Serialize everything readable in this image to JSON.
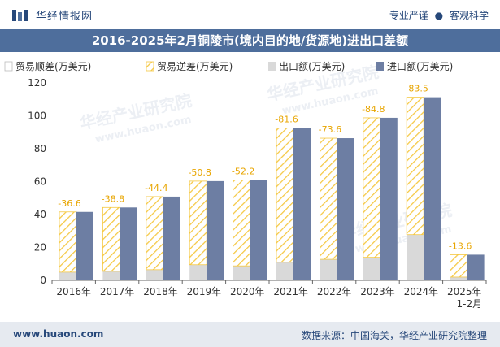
{
  "header": {
    "brand": "华经情报网",
    "tagline_left": "专业严谨",
    "tagline_right": "客观科学"
  },
  "colors": {
    "title_bg": "#4e6e9c",
    "import_bar": "#6d7ea3",
    "export_bar": "#d9d9d9",
    "deficit_stripe": "#f5c842",
    "label": "#e8a500"
  },
  "watermark": {
    "cn": "华经产业研究院",
    "url": "www.huaon.com"
  },
  "chart_data": {
    "type": "bar",
    "title": "2016-2025年2月铜陵市(境内目的地/货源地)进出口差额",
    "ylim": [
      0,
      120
    ],
    "yticks": [
      0,
      20,
      40,
      60,
      80,
      100,
      120
    ],
    "legend": [
      "贸易顺差(万美元)",
      "贸易逆差(万美元)",
      "出口额(万美元)",
      "进口额(万美元)"
    ],
    "categories": [
      "2016年",
      "2017年",
      "2018年",
      "2019年",
      "2020年",
      "2021年",
      "2022年",
      "2023年",
      "2024年",
      "2025年\n1-2月"
    ],
    "series": [
      {
        "name": "出口额(万美元)",
        "values": [
          5.0,
          5.5,
          6.5,
          9.5,
          8.8,
          11.0,
          12.8,
          14.0,
          27.8,
          2.0
        ]
      },
      {
        "name": "进口额(万美元)",
        "values": [
          41.6,
          44.3,
          50.9,
          60.3,
          61.0,
          92.6,
          86.4,
          98.8,
          111.3,
          15.6
        ]
      },
      {
        "name": "贸易逆差(万美元)",
        "values": [
          -36.6,
          -38.8,
          -44.4,
          -50.8,
          -52.2,
          -81.6,
          -73.6,
          -84.8,
          -83.5,
          -13.6
        ]
      }
    ],
    "data_labels": [
      "-36.6",
      "-38.8",
      "-44.4",
      "-50.8",
      "-52.2",
      "-81.6",
      "-73.6",
      "-84.8",
      "-83.5",
      "-13.6"
    ]
  },
  "footer": {
    "website": "www.huaon.com",
    "source": "数据来源：中国海关，华经产业研究院整理"
  }
}
